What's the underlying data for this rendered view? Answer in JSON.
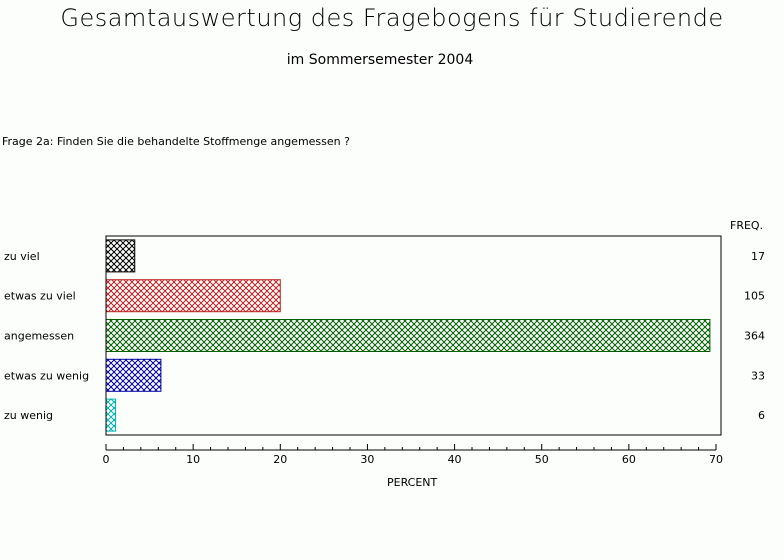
{
  "title": "Gesamtauswertung des Fragebogens für Studierende",
  "subtitle": "im Sommersemester 2004",
  "question": "Frage 2a: Finden Sie die behandelte Stoffmenge angemessen ?",
  "chart_data": {
    "type": "bar",
    "orientation": "horizontal",
    "categories": [
      "zu viel",
      "etwas zu viel",
      "angemessen",
      "etwas zu wenig",
      "zu wenig"
    ],
    "values": [
      3.3,
      20.0,
      69.3,
      6.3,
      1.1
    ],
    "freq": [
      "17",
      "105",
      "364",
      "33",
      "6"
    ],
    "freq_label": "FREQ.",
    "xlabel": "PERCENT",
    "xlim": [
      0,
      70
    ],
    "xticks": [
      0,
      10,
      20,
      30,
      40,
      50,
      60,
      70
    ],
    "colors": [
      "#000000",
      "#c02020",
      "#006000",
      "#0000a0",
      "#00b0b0"
    ],
    "grid": false,
    "legend": "none"
  }
}
